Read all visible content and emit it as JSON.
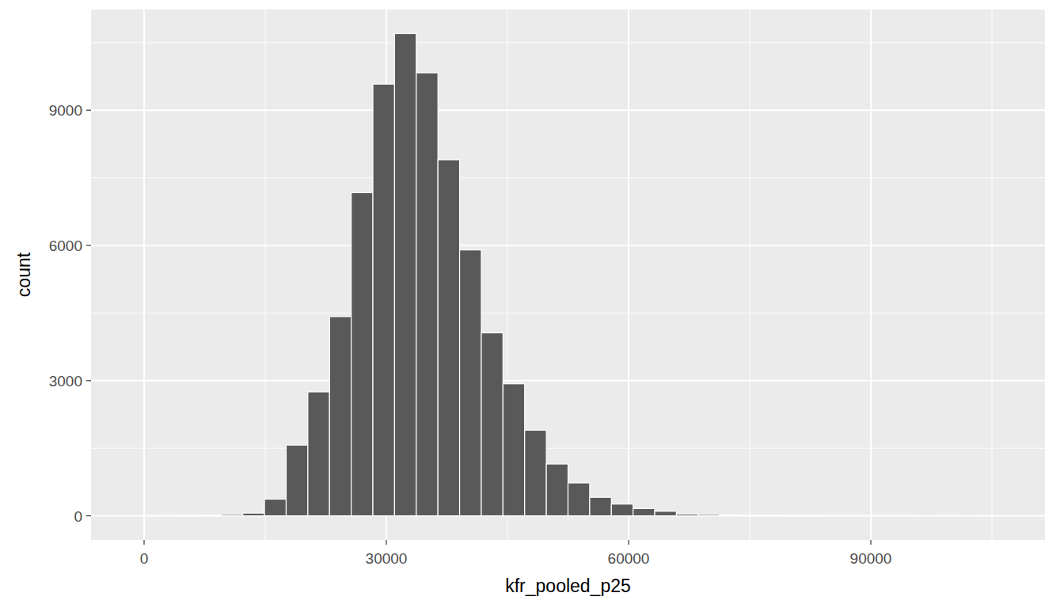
{
  "chart_data": {
    "type": "histogram",
    "x_label": "kfr_pooled_p25",
    "y_label": "count",
    "bins": [
      -1200,
      1485,
      4170,
      6855,
      9540,
      12225,
      14910,
      17595,
      20280,
      22965,
      25650,
      28335,
      31020,
      33705,
      36390,
      39075,
      41760,
      44445,
      47130,
      49815,
      52500,
      55185,
      57870,
      60555,
      63240,
      65925,
      68610,
      71295,
      73980,
      76665,
      79350,
      82035,
      84720,
      87405,
      90090,
      92775,
      95460,
      98145,
      100830,
      103515,
      106200
    ],
    "values": [
      0,
      2,
      3,
      10,
      30,
      60,
      370,
      1570,
      2750,
      4420,
      7170,
      9580,
      10700,
      9830,
      7900,
      5900,
      4060,
      2930,
      1900,
      1150,
      730,
      410,
      260,
      160,
      100,
      40,
      30,
      20,
      10,
      8,
      5,
      3,
      2,
      2,
      1,
      1,
      0,
      1,
      0,
      1
    ],
    "color": "#595959",
    "xlim": [
      -6570,
      111570
    ],
    "xticks": [
      0,
      30000,
      60000,
      90000
    ],
    "ylim": [
      -535,
      11235
    ],
    "yticks": [
      0,
      3000,
      6000,
      9000
    ],
    "grid": true
  }
}
